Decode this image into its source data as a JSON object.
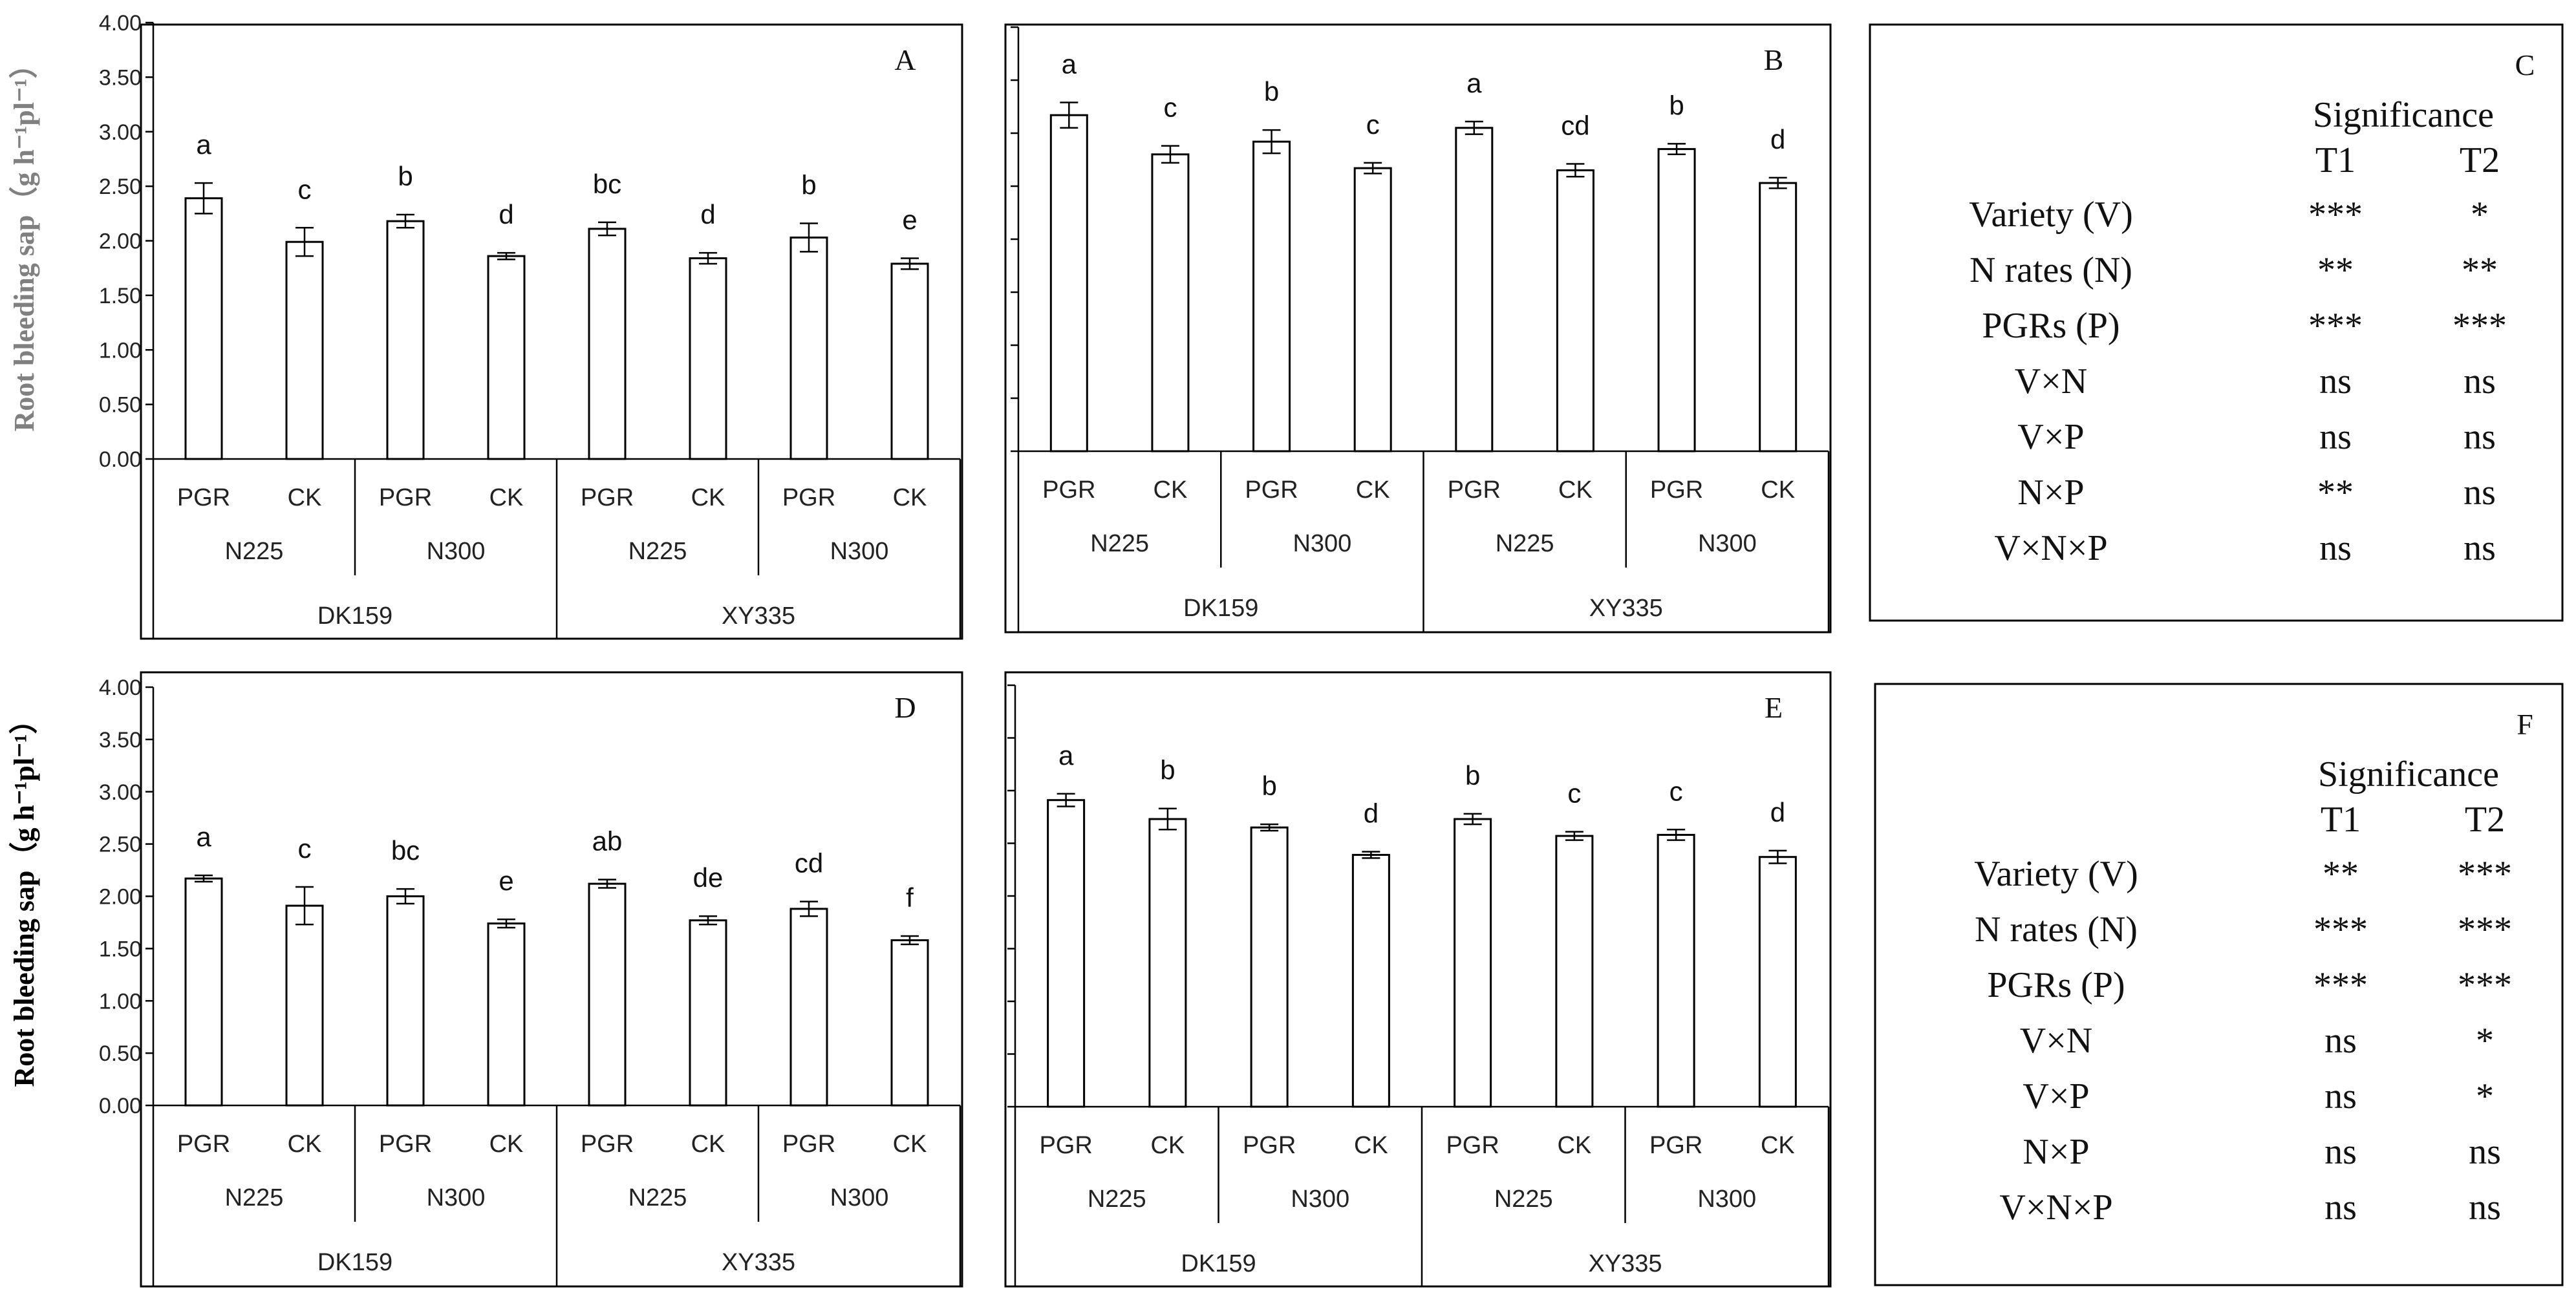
{
  "panels": [
    {
      "type": "bar",
      "letter": "A",
      "ylabel": "Root bleeding sap（g h⁻¹pl⁻¹）",
      "ylabel_color": "#808080",
      "show_y_axis_labels": true,
      "ylim": [
        0,
        4
      ],
      "yticks": [
        "0.00",
        "0.50",
        "1.00",
        "1.50",
        "2.00",
        "2.50",
        "3.00",
        "3.50",
        "4.00"
      ],
      "categories": [
        "PGR",
        "CK",
        "PGR",
        "CK",
        "PGR",
        "CK",
        "PGR",
        "CK"
      ],
      "groups_level1": [
        "N225",
        "N300",
        "N225",
        "N300"
      ],
      "groups_level2": [
        "DK159",
        "XY335"
      ],
      "values": [
        2.39,
        1.99,
        2.18,
        1.86,
        2.11,
        1.84,
        2.03,
        1.79
      ],
      "errors": [
        0.14,
        0.13,
        0.06,
        0.03,
        0.06,
        0.05,
        0.13,
        0.05
      ],
      "letters": [
        "a",
        "c",
        "b",
        "d",
        "bc",
        "d",
        "b",
        "e"
      ]
    },
    {
      "type": "bar",
      "letter": "B",
      "ylabel": "",
      "show_y_axis_labels": false,
      "ylim": [
        0,
        4
      ],
      "yticks": [
        "0.00",
        "0.50",
        "1.00",
        "1.50",
        "2.00",
        "2.50",
        "3.00",
        "3.50",
        "4.00"
      ],
      "categories": [
        "PGR",
        "CK",
        "PGR",
        "CK",
        "PGR",
        "CK",
        "PGR",
        "CK"
      ],
      "groups_level1": [
        "N225",
        "N300",
        "N225",
        "N300"
      ],
      "groups_level2": [
        "DK159",
        "XY335"
      ],
      "values": [
        3.17,
        2.8,
        2.92,
        2.67,
        3.05,
        2.65,
        2.85,
        2.53
      ],
      "errors": [
        0.12,
        0.08,
        0.11,
        0.05,
        0.06,
        0.06,
        0.05,
        0.05
      ],
      "letters": [
        "a",
        "c",
        "b",
        "c",
        "a",
        "cd",
        "b",
        "d"
      ]
    },
    {
      "type": "bar",
      "letter": "D",
      "ylabel": "Root bleeding sap（g h⁻¹pl⁻¹）",
      "ylabel_color": "#000000",
      "show_y_axis_labels": true,
      "ylim": [
        0,
        4
      ],
      "yticks": [
        "0.00",
        "0.50",
        "1.00",
        "1.50",
        "2.00",
        "2.50",
        "3.00",
        "3.50",
        "4.00"
      ],
      "categories": [
        "PGR",
        "CK",
        "PGR",
        "CK",
        "PGR",
        "CK",
        "PGR",
        "CK"
      ],
      "groups_level1": [
        "N225",
        "N300",
        "N225",
        "N300"
      ],
      "groups_level2": [
        "DK159",
        "XY335"
      ],
      "values": [
        2.17,
        1.91,
        2.0,
        1.74,
        2.12,
        1.77,
        1.88,
        1.58
      ],
      "errors": [
        0.03,
        0.18,
        0.07,
        0.04,
        0.04,
        0.04,
        0.07,
        0.04
      ],
      "letters": [
        "a",
        "c",
        "bc",
        "e",
        "ab",
        "de",
        "cd",
        "f"
      ]
    },
    {
      "type": "bar",
      "letter": "E",
      "ylabel": "",
      "show_y_axis_labels": false,
      "ylim": [
        0,
        4
      ],
      "yticks": [
        "0.00",
        "0.50",
        "1.00",
        "1.50",
        "2.00",
        "2.50",
        "3.00",
        "3.50",
        "4.00"
      ],
      "categories": [
        "PGR",
        "CK",
        "PGR",
        "CK",
        "PGR",
        "CK",
        "PGR",
        "CK"
      ],
      "groups_level1": [
        "N225",
        "N300",
        "N225",
        "N300"
      ],
      "groups_level2": [
        "DK159",
        "XY335"
      ],
      "values": [
        2.91,
        2.73,
        2.65,
        2.39,
        2.73,
        2.57,
        2.58,
        2.37
      ],
      "errors": [
        0.06,
        0.1,
        0.03,
        0.03,
        0.05,
        0.04,
        0.05,
        0.06
      ],
      "letters": [
        "a",
        "b",
        "b",
        "d",
        "b",
        "c",
        "c",
        "d"
      ]
    }
  ],
  "tables": [
    {
      "letter": "C",
      "title": "Significance",
      "columns": [
        "T1",
        "T2"
      ],
      "rows": [
        {
          "label": "Variety (V)",
          "t1": "***",
          "t2": "*"
        },
        {
          "label": "N rates (N)",
          "t1": "**",
          "t2": "**"
        },
        {
          "label": "PGRs (P)",
          "t1": "***",
          "t2": "***"
        },
        {
          "label": "V×N",
          "t1": "ns",
          "t2": "ns"
        },
        {
          "label": "V×P",
          "t1": "ns",
          "t2": "ns"
        },
        {
          "label": "N×P",
          "t1": "**",
          "t2": "ns"
        },
        {
          "label": "V×N×P",
          "t1": "ns",
          "t2": "ns"
        }
      ]
    },
    {
      "letter": "F",
      "title": "Significance",
      "columns": [
        "T1",
        "T2"
      ],
      "rows": [
        {
          "label": "Variety (V)",
          "t1": "**",
          "t2": "***"
        },
        {
          "label": "N rates (N)",
          "t1": "***",
          "t2": "***"
        },
        {
          "label": "PGRs (P)",
          "t1": "***",
          "t2": "***"
        },
        {
          "label": "V×N",
          "t1": "ns",
          "t2": "*"
        },
        {
          "label": "V×P",
          "t1": "ns",
          "t2": "*"
        },
        {
          "label": "N×P",
          "t1": "ns",
          "t2": "ns"
        },
        {
          "label": "V×N×P",
          "t1": "ns",
          "t2": "ns"
        }
      ]
    }
  ],
  "chart_data": [
    {
      "type": "bar",
      "panel": "A",
      "categories": [
        "DK159 N225 PGR",
        "DK159 N225 CK",
        "DK159 N300 PGR",
        "DK159 N300 CK",
        "XY335 N225 PGR",
        "XY335 N225 CK",
        "XY335 N300 PGR",
        "XY335 N300 CK"
      ],
      "values": [
        2.39,
        1.99,
        2.18,
        1.86,
        2.11,
        1.84,
        2.03,
        1.79
      ],
      "errors": [
        0.14,
        0.13,
        0.06,
        0.03,
        0.06,
        0.05,
        0.13,
        0.05
      ],
      "ylabel": "Root bleeding sap（g h⁻¹pl⁻¹）",
      "ylim": [
        0,
        4
      ]
    },
    {
      "type": "bar",
      "panel": "B",
      "categories": [
        "DK159 N225 PGR",
        "DK159 N225 CK",
        "DK159 N300 PGR",
        "DK159 N300 CK",
        "XY335 N225 PGR",
        "XY335 N225 CK",
        "XY335 N300 PGR",
        "XY335 N300 CK"
      ],
      "values": [
        3.17,
        2.8,
        2.92,
        2.67,
        3.05,
        2.65,
        2.85,
        2.53
      ],
      "errors": [
        0.12,
        0.08,
        0.11,
        0.05,
        0.06,
        0.06,
        0.05,
        0.05
      ],
      "ylim": [
        0,
        4
      ]
    },
    {
      "type": "bar",
      "panel": "D",
      "categories": [
        "DK159 N225 PGR",
        "DK159 N225 CK",
        "DK159 N300 PGR",
        "DK159 N300 CK",
        "XY335 N225 PGR",
        "XY335 N225 CK",
        "XY335 N300 PGR",
        "XY335 N300 CK"
      ],
      "values": [
        2.17,
        1.91,
        2.0,
        1.74,
        2.12,
        1.77,
        1.88,
        1.58
      ],
      "errors": [
        0.03,
        0.18,
        0.07,
        0.04,
        0.04,
        0.04,
        0.07,
        0.04
      ],
      "ylabel": "Root bleeding sap（g h⁻¹pl⁻¹）",
      "ylim": [
        0,
        4
      ]
    },
    {
      "type": "bar",
      "panel": "E",
      "categories": [
        "DK159 N225 PGR",
        "DK159 N225 CK",
        "DK159 N300 PGR",
        "DK159 N300 CK",
        "XY335 N225 PGR",
        "XY335 N225 CK",
        "XY335 N300 PGR",
        "XY335 N300 CK"
      ],
      "values": [
        2.91,
        2.73,
        2.65,
        2.39,
        2.73,
        2.57,
        2.58,
        2.37
      ],
      "errors": [
        0.06,
        0.1,
        0.03,
        0.03,
        0.05,
        0.04,
        0.05,
        0.06
      ],
      "ylim": [
        0,
        4
      ]
    }
  ]
}
